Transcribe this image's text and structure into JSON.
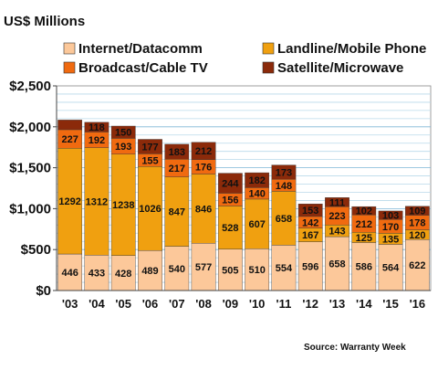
{
  "chart_data": {
    "type": "bar",
    "stacked": true,
    "title": "US$ Millions",
    "source": "Source:  Warranty  Week",
    "categories": [
      "'03",
      "'04",
      "'05",
      "'06",
      "'07",
      "'08",
      "'09",
      "'10",
      "'11",
      "'12",
      "'13",
      "'14",
      "'15",
      "'16"
    ],
    "ylim": [
      0,
      2500
    ],
    "yticks": [
      0,
      500,
      1000,
      1500,
      2000,
      2500
    ],
    "ytick_labels": [
      "$0",
      "$500",
      "$1,000",
      "$1,500",
      "$2,000",
      "$2,500"
    ],
    "grid": true,
    "legend_position": "top",
    "series": [
      {
        "name": "Internet/Datacomm",
        "color": "#fcc89a",
        "values": [
          446,
          433,
          428,
          489,
          540,
          577,
          505,
          510,
          554,
          596,
          658,
          586,
          564,
          622
        ]
      },
      {
        "name": "Landline/Mobile Phone",
        "color": "#f0a010",
        "values": [
          1292,
          1312,
          1238,
          1026,
          847,
          846,
          528,
          607,
          658,
          167,
          143,
          125,
          135,
          120
        ]
      },
      {
        "name": "Broadcast/Cable TV",
        "color": "#f06a10",
        "values": [
          227,
          192,
          193,
          155,
          217,
          176,
          156,
          140,
          148,
          142,
          223,
          212,
          170,
          178
        ]
      },
      {
        "name": "Satellite/Microwave",
        "color": "#8b2a0a",
        "values": [
          118,
          118,
          150,
          177,
          183,
          212,
          244,
          182,
          173,
          153,
          111,
          102,
          103,
          109
        ]
      }
    ],
    "segment_labels": [
      [
        "446",
        "433",
        "428",
        "489",
        "540",
        "577",
        "505",
        "510",
        "554",
        "596",
        "658",
        "586",
        "564",
        "622"
      ],
      [
        "1292",
        "1312",
        "1238",
        "1026",
        "847",
        "846",
        "528",
        "607",
        "658",
        "167",
        "143",
        "125",
        "135",
        "120"
      ],
      [
        "227",
        "192",
        "193",
        "155",
        "217",
        "176",
        "156",
        "140",
        "148",
        "142",
        "223",
        "212",
        "170",
        "178"
      ],
      [
        "",
        "118",
        "150",
        "177",
        "183",
        "212",
        "244",
        "182",
        "173",
        "153",
        "111",
        "102",
        "103",
        "109"
      ]
    ]
  }
}
